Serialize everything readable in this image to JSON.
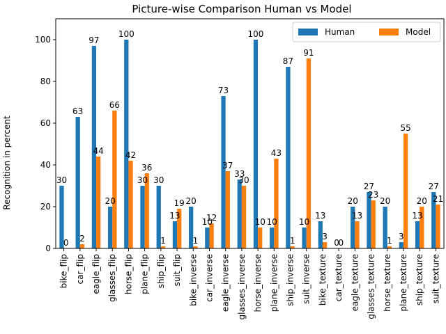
{
  "chart_data": {
    "type": "bar",
    "title": "Picture-wise Comparison Human vs Model",
    "xlabel": "",
    "ylabel": "Recognition in percent",
    "ylim": [
      0,
      110
    ],
    "yticks": [
      0,
      20,
      40,
      60,
      80,
      100
    ],
    "legend_position": "top-right",
    "grid": false,
    "categories": [
      "bike_flip",
      "car_flip",
      "eagle_flip",
      "glasses_flip",
      "horse_flip",
      "plane_flip",
      "ship_flip",
      "suit_flip",
      "bike_inverse",
      "car_inverse",
      "eagle_inverse",
      "glasses_inverse",
      "horse_inverse",
      "plane_inverse",
      "ship_inverse",
      "suit_inverse",
      "bike_texture",
      "car_texture",
      "eagle_texture",
      "glasses_texture",
      "horse_texture",
      "plane_texture",
      "ship_texture",
      "suit_texture"
    ],
    "series": [
      {
        "name": "Human",
        "color": "#1f77b4",
        "values": [
          30,
          63,
          97,
          20,
          100,
          30,
          30,
          13,
          20,
          10,
          73,
          33,
          100,
          10,
          87,
          10,
          13,
          0,
          20,
          27,
          20,
          3,
          13,
          27
        ]
      },
      {
        "name": "Model",
        "color": "#ff7f0e",
        "values": [
          0,
          2,
          44,
          66,
          42,
          36,
          1,
          19,
          1,
          12,
          37,
          30,
          10,
          43,
          1,
          91,
          3,
          0,
          13,
          23,
          1,
          55,
          20,
          21
        ]
      }
    ]
  }
}
